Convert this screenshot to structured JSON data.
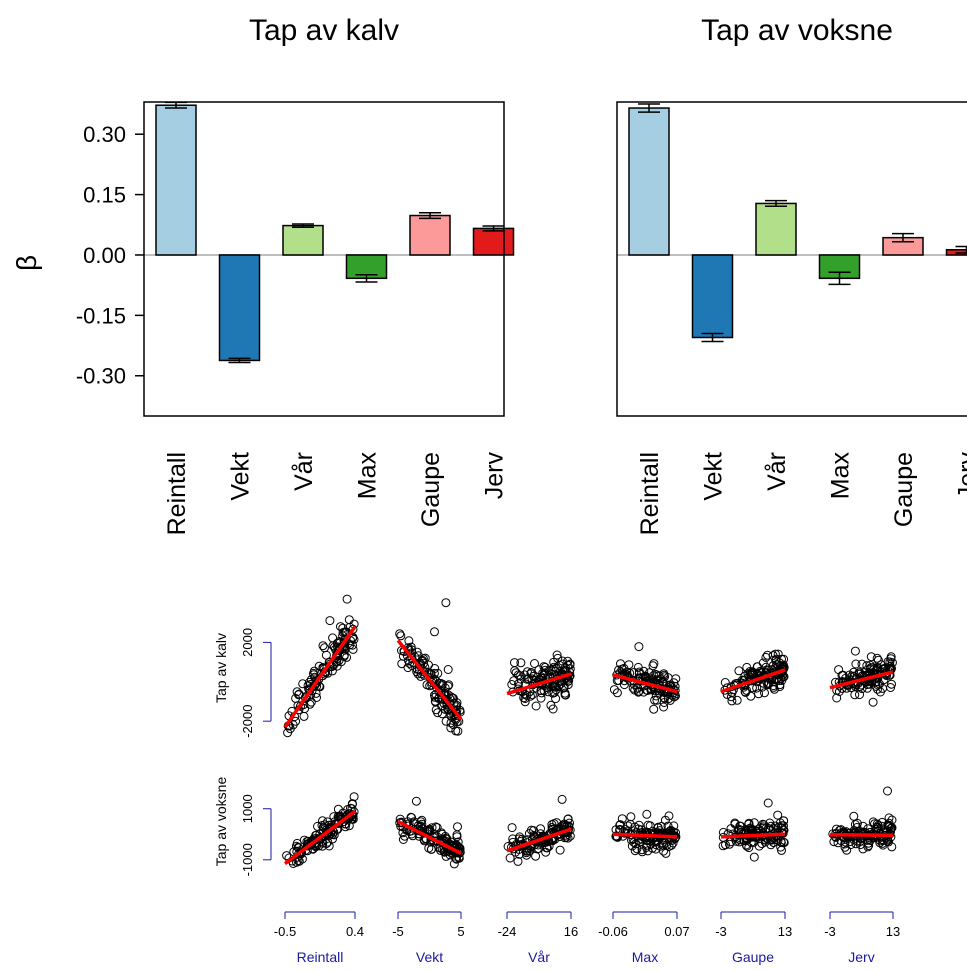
{
  "colors": {
    "Reintall": "#a6cee3",
    "Vekt": "#1f78b4",
    "Vår": "#b2df8a",
    "Max": "#33a02c",
    "Gaupe": "#fb9a99",
    "Jerv": "#e31a1c",
    "fit_line": "#ff0000",
    "range_bracket": "#1a1aa0",
    "zero_line": "#bebebe"
  },
  "chart_data": [
    {
      "type": "bar",
      "title": "Tap av kalv",
      "ylabel": "β",
      "ylim": [
        -0.4,
        0.38
      ],
      "yticks": [
        "0.30",
        "0.15",
        "0.00",
        "-0.15",
        "-0.30"
      ],
      "categories": [
        "Reintall",
        "Vekt",
        "Vår",
        "Max",
        "Gaupe",
        "Jerv"
      ],
      "values": [
        0.372,
        -0.262,
        0.073,
        -0.058,
        0.098,
        0.066
      ],
      "errors": [
        0.007,
        0.005,
        0.004,
        0.009,
        0.007,
        0.006
      ],
      "grid": false
    },
    {
      "type": "bar",
      "title": "Tap av voksne",
      "ylabel": "",
      "ylim": [
        -0.4,
        0.38
      ],
      "categories": [
        "Reintall",
        "Vekt",
        "Vår",
        "Max",
        "Gaupe",
        "Jerv"
      ],
      "values": [
        0.365,
        -0.205,
        0.128,
        -0.058,
        0.043,
        0.013
      ],
      "errors": [
        0.01,
        0.01,
        0.007,
        0.015,
        0.01,
        0.008
      ],
      "grid": false
    },
    {
      "type": "scatter",
      "rows": [
        {
          "ylabel": "Tap av kalv",
          "yticks": [
            "2000",
            "-2000"
          ],
          "yrange": [
            -2600,
            4000
          ]
        },
        {
          "ylabel": "Tap av voksne",
          "yticks": [
            "1000",
            "-1000"
          ],
          "yrange": [
            -1400,
            2400
          ]
        }
      ],
      "columns": [
        {
          "xlabel": "Reintall",
          "xticks": [
            "-0.5",
            "0.4"
          ],
          "xrange": [
            -0.5,
            0.4
          ]
        },
        {
          "xlabel": "Vekt",
          "xticks": [
            "-5",
            "5"
          ],
          "xrange": [
            -5,
            5
          ]
        },
        {
          "xlabel": "Vår",
          "xticks": [
            "-24",
            "16"
          ],
          "xrange": [
            -24,
            16
          ]
        },
        {
          "xlabel": "Max",
          "xticks": [
            "-0.06",
            "0.07"
          ],
          "xrange": [
            -0.06,
            0.07
          ]
        },
        {
          "xlabel": "Gaupe",
          "xticks": [
            "-3",
            "13"
          ],
          "xrange": [
            -3,
            13
          ]
        },
        {
          "xlabel": "Jerv",
          "xticks": [
            "-3",
            "13"
          ],
          "xrange": [
            -3,
            13
          ]
        }
      ],
      "panels": [
        [
          {
            "trend": [
              [
                -0.5,
                -2300
              ],
              [
                0.4,
                2800
              ]
            ],
            "spread": 450
          },
          {
            "trend": [
              [
                -5,
                2100
              ],
              [
                5,
                -1900
              ]
            ],
            "spread": 450
          },
          {
            "trend": [
              [
                -24,
                -600
              ],
              [
                16,
                400
              ]
            ],
            "spread": 450
          },
          {
            "trend": [
              [
                -0.06,
                350
              ],
              [
                0.07,
                -500
              ]
            ],
            "spread": 400
          },
          {
            "trend": [
              [
                -3,
                -500
              ],
              [
                13,
                600
              ]
            ],
            "spread": 380
          },
          {
            "trend": [
              [
                -3,
                -300
              ],
              [
                13,
                500
              ]
            ],
            "spread": 380
          }
        ],
        [
          {
            "trend": [
              [
                -0.5,
                -1150
              ],
              [
                0.4,
                900
              ]
            ],
            "spread": 250
          },
          {
            "trend": [
              [
                -5,
                500
              ],
              [
                5,
                -750
              ]
            ],
            "spread": 260
          },
          {
            "trend": [
              [
                -24,
                -650
              ],
              [
                16,
                200
              ]
            ],
            "spread": 260
          },
          {
            "trend": [
              [
                -0.06,
                0
              ],
              [
                0.07,
                -100
              ]
            ],
            "spread": 250
          },
          {
            "trend": [
              [
                -3,
                -100
              ],
              [
                13,
                0
              ]
            ],
            "spread": 270
          },
          {
            "trend": [
              [
                -3,
                -20
              ],
              [
                13,
                -40
              ]
            ],
            "spread": 270
          }
        ]
      ]
    }
  ]
}
